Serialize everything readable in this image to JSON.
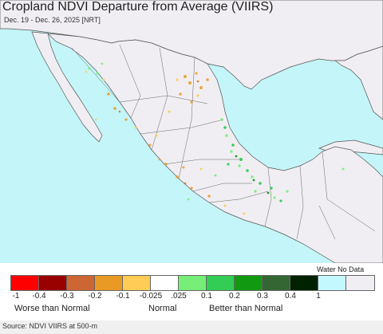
{
  "header": {
    "title": "Cropland NDVI Departure from Average (VIIRS)",
    "subtitle": "Dec. 19 - Dec. 26, 2025 [NRT]"
  },
  "map": {
    "water_color": "#c4f5f8",
    "land_color": "#f0eef2",
    "border_color": "#555555"
  },
  "legend": {
    "water_no_data_label": "Water No Data",
    "swatches": [
      {
        "color": "#ff0000"
      },
      {
        "color": "#990000"
      },
      {
        "color": "#cc6633"
      },
      {
        "color": "#e89a24"
      },
      {
        "color": "#ffcc55"
      },
      {
        "color": "#ffffff"
      },
      {
        "color": "#77ee77"
      },
      {
        "color": "#33cc55"
      },
      {
        "color": "#119911"
      },
      {
        "color": "#336633"
      },
      {
        "color": "#002200"
      },
      {
        "color": "#c4f8ff"
      },
      {
        "color": "#f0eef2"
      }
    ],
    "ticks": [
      "-1",
      "-0.4",
      "-0.3",
      "-0.2",
      "-0.1",
      "-0.025",
      ".025",
      "0.1",
      "0.2",
      "0.3",
      "0.4",
      "1"
    ],
    "captions": {
      "worse": "Worse than Normal",
      "normal": "Normal",
      "better": "Better than Normal"
    }
  },
  "footer": {
    "source": "Source: NDVI VIIRS at 500-m"
  }
}
